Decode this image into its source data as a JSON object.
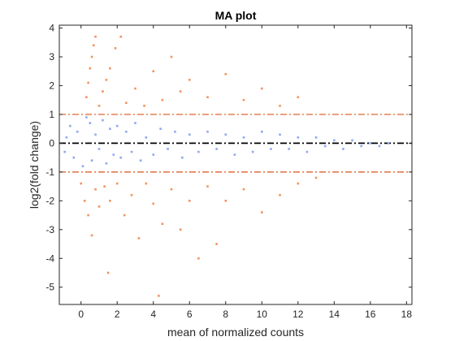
{
  "chart_data": {
    "type": "scatter",
    "title": "MA plot",
    "xlabel": "mean of normalized counts",
    "ylabel": "log2(fold change)",
    "xlim": [
      -1.2,
      18.3
    ],
    "ylim": [
      -5.6,
      4.1
    ],
    "xticks": [
      0,
      2,
      4,
      6,
      8,
      10,
      12,
      14,
      16,
      18
    ],
    "yticks": [
      -5,
      -4,
      -3,
      -2,
      -1,
      0,
      1,
      2,
      3,
      4
    ],
    "grid": false,
    "legend": "none",
    "colors": {
      "non_significant": "#8fa8f0",
      "significant": "#f5925e",
      "threshold_line": "#d95319",
      "zero_line": "#000000"
    },
    "reference_lines": [
      {
        "y": 1,
        "style": "dash-dot",
        "color": "#d95319"
      },
      {
        "y": 0,
        "style": "dash-dot",
        "color": "#000000"
      },
      {
        "y": -1,
        "style": "dash-dot",
        "color": "#d95319"
      }
    ],
    "series": [
      {
        "points": [
          [
            -0.8,
            0.2
          ],
          [
            -0.9,
            -0.3
          ],
          [
            -0.6,
            0.6
          ],
          [
            -0.4,
            -0.5
          ],
          [
            -0.2,
            0.4
          ],
          [
            0.3,
            0.9
          ],
          [
            0.1,
            -0.8
          ],
          [
            0.5,
            0.7
          ],
          [
            0.6,
            -0.6
          ],
          [
            0.8,
            0.3
          ],
          [
            1.0,
            -0.2
          ],
          [
            1.2,
            0.8
          ],
          [
            1.4,
            -0.7
          ],
          [
            1.6,
            0.5
          ],
          [
            1.8,
            -0.4
          ],
          [
            2.0,
            0.6
          ],
          [
            2.2,
            -0.5
          ],
          [
            2.5,
            0.4
          ],
          [
            2.8,
            -0.3
          ],
          [
            3.0,
            0.7
          ],
          [
            3.3,
            -0.6
          ],
          [
            3.6,
            0.2
          ],
          [
            4.0,
            -0.4
          ],
          [
            4.4,
            0.5
          ],
          [
            4.8,
            -0.2
          ],
          [
            5.2,
            0.4
          ],
          [
            5.6,
            -0.5
          ],
          [
            6.0,
            0.3
          ],
          [
            6.5,
            -0.3
          ],
          [
            7.0,
            0.4
          ],
          [
            7.5,
            -0.2
          ],
          [
            8.0,
            0.3
          ],
          [
            8.5,
            -0.4
          ],
          [
            9.0,
            0.2
          ],
          [
            9.5,
            -0.3
          ],
          [
            10.0,
            0.4
          ],
          [
            10.5,
            -0.2
          ],
          [
            11.0,
            0.3
          ],
          [
            11.5,
            -0.2
          ],
          [
            12.0,
            0.2
          ],
          [
            12.5,
            -0.3
          ],
          [
            13.0,
            0.2
          ],
          [
            13.5,
            -0.1
          ],
          [
            14.0,
            0.1
          ],
          [
            14.5,
            -0.2
          ],
          [
            15.0,
            0.1
          ],
          [
            15.5,
            -0.1
          ],
          [
            16.0,
            0.0
          ],
          [
            16.5,
            -0.1
          ],
          [
            17.0,
            0.0
          ]
        ]
      },
      {
        "points": [
          [
            0.3,
            1.6
          ],
          [
            0.4,
            2.1
          ],
          [
            0.5,
            2.6
          ],
          [
            0.6,
            3.0
          ],
          [
            0.7,
            3.4
          ],
          [
            0.8,
            3.7
          ],
          [
            1.0,
            1.3
          ],
          [
            1.2,
            1.8
          ],
          [
            1.4,
            2.2
          ],
          [
            1.6,
            2.6
          ],
          [
            1.9,
            3.3
          ],
          [
            2.2,
            3.7
          ],
          [
            2.5,
            1.4
          ],
          [
            3.0,
            1.9
          ],
          [
            3.5,
            1.3
          ],
          [
            4.0,
            2.5
          ],
          [
            4.5,
            1.5
          ],
          [
            5.0,
            3.0
          ],
          [
            5.5,
            1.8
          ],
          [
            6.0,
            2.2
          ],
          [
            7.0,
            1.6
          ],
          [
            8.0,
            2.4
          ],
          [
            9.0,
            1.5
          ],
          [
            10.0,
            1.9
          ],
          [
            11.0,
            1.3
          ],
          [
            12.0,
            1.6
          ],
          [
            0.0,
            -1.4
          ],
          [
            0.2,
            -2.0
          ],
          [
            0.4,
            -2.5
          ],
          [
            0.6,
            -3.2
          ],
          [
            0.8,
            -1.6
          ],
          [
            1.0,
            -2.2
          ],
          [
            1.3,
            -1.5
          ],
          [
            1.6,
            -2.0
          ],
          [
            2.0,
            -1.4
          ],
          [
            2.4,
            -2.5
          ],
          [
            2.8,
            -1.8
          ],
          [
            3.2,
            -3.3
          ],
          [
            3.6,
            -1.4
          ],
          [
            4.0,
            -2.1
          ],
          [
            4.5,
            -2.8
          ],
          [
            5.0,
            -1.6
          ],
          [
            5.5,
            -3.0
          ],
          [
            6.0,
            -2.0
          ],
          [
            6.5,
            -4.0
          ],
          [
            7.0,
            -1.5
          ],
          [
            7.5,
            -3.5
          ],
          [
            8.0,
            -2.0
          ],
          [
            9.0,
            -1.6
          ],
          [
            10.0,
            -2.4
          ],
          [
            11.0,
            -1.8
          ],
          [
            12.0,
            -1.4
          ],
          [
            13.0,
            -1.2
          ],
          [
            1.5,
            -4.5
          ],
          [
            4.3,
            -5.3
          ]
        ]
      }
    ]
  }
}
